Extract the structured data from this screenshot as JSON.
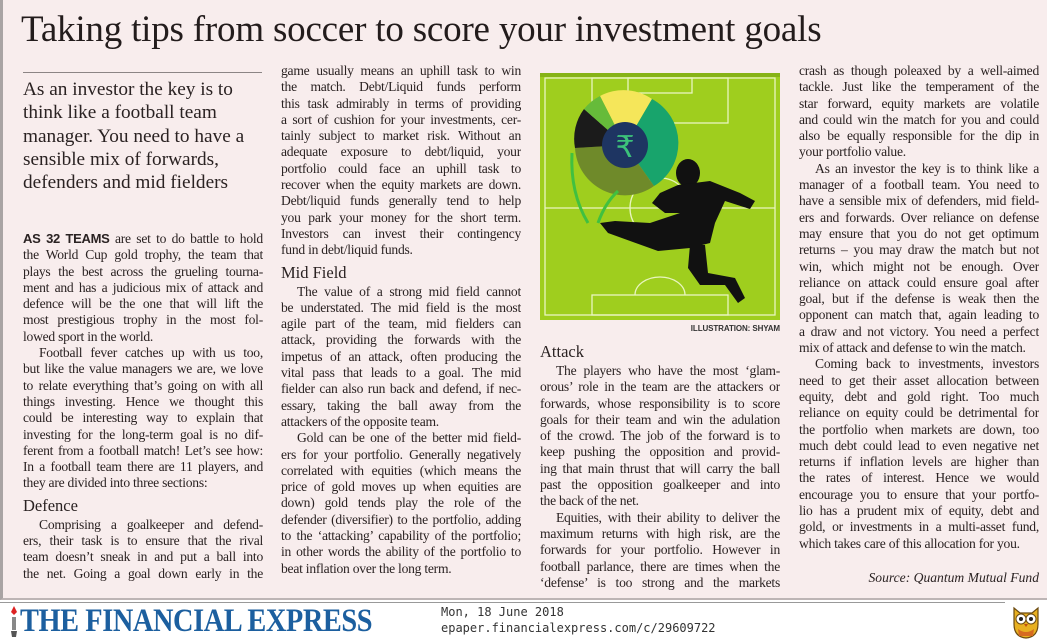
{
  "article": {
    "title": "Taking tips from soccer to score your investment goals",
    "deck": "As an investor the key is to think like a football team manager. You need to have a sensible mix of forwards, defenders and mid fielders",
    "illustration_credit": "ILLUSTRATION: SHYAM",
    "source": "Source: Quantum Mutual Fund",
    "columns": [
      {
        "blocks": [
          {
            "type": "p",
            "lead": "AS 32 TEAMS",
            "lines": [
              "are set to do battle to hold",
              "the World Cup gold trophy, the team that",
              "plays the best across the grueling tourna-",
              "ment and has a judicious mix of attack and",
              "defence will be the one that will lift the",
              "most prestigious trophy in the most fol-",
              "lowed sport in the world."
            ]
          },
          {
            "type": "p",
            "lines": [
              "Football fever catches up with us too,",
              "but like the value managers we are, we love",
              "to relate everything that’s going on with all",
              "things investing. Hence we thought this",
              "could be interesting way to explain that",
              "investing for the long-term goal is no dif-",
              "ferent from a football match! Let’s see how:",
              "In a football team there are 11 players, and",
              "they are divided into three sections:"
            ]
          },
          {
            "type": "h",
            "text": "Defence"
          },
          {
            "type": "p",
            "cont": true,
            "lines": [
              "Comprising a goalkeeper and defend-",
              "ers, their task is to ensure that the rival",
              "team doesn’t sneak in and put a ball into",
              "the net. Going a goal down early in the"
            ]
          }
        ]
      },
      {
        "blocks": [
          {
            "type": "p",
            "noindent": true,
            "lines": [
              "game usually means an uphill task to win",
              "the match. Debt/Liquid funds perform",
              "this task admirably in terms of providing",
              "a sort of cushion for your investments, cer-",
              "tainly subject to market risk. Without an",
              "adequate exposure to debt/liquid, your",
              "portfolio could face an uphill task to",
              "recover when the equity markets are down.",
              "Debt/liquid funds generally tend to help",
              "you park your money for the short term.",
              "Investors can invest their contingency",
              "fund in debt/liquid funds."
            ]
          },
          {
            "type": "h",
            "text": "Mid Field"
          },
          {
            "type": "p",
            "lines": [
              "The value of a strong mid field cannot",
              "be understated. The mid field is the most",
              "agile part of the team, mid fielders can",
              "attack, providing the forwards with the",
              "impetus of an attack, often producing the",
              "vital pass that leads to a goal. The mid",
              "fielder can also run back and defend, if nec-",
              "essary, taking the ball away from the",
              "attackers of the opposite team."
            ]
          },
          {
            "type": "p",
            "lines": [
              "Gold can be one of the better mid field-",
              "ers for your portfolio. Generally negatively",
              "correlated with equities (which means the",
              "price of gold moves up when equities are",
              "down) gold tends play the role of the",
              "defender (diversifier) to the portfolio, adding",
              "to the ‘attacking’ capability of the portfolio;",
              "in other words the ability of the portfolio to",
              "beat inflation over the long term."
            ]
          }
        ]
      },
      {
        "blocks": [
          {
            "type": "h",
            "text": "Attack"
          },
          {
            "type": "p",
            "lines": [
              "The players who have the most ‘glam-",
              "orous’ role in the team are the attackers or",
              "forwards, whose responsibility is to score",
              "goals for their team and win the adulation",
              "of the crowd. The job of the forward is to",
              "keep pushing the opposition and provid-",
              "ing that main thrust that will carry the ball",
              "past the opposition goalkeeper and into",
              "the back of the net."
            ]
          },
          {
            "type": "p",
            "cont": true,
            "lines": [
              "Equities, with their ability to deliver the",
              "maximum returns with high risk, are the",
              "forwards for your portfolio. However in",
              "football parlance, there are times when the",
              "‘defense’ is too strong and the markets"
            ]
          }
        ]
      },
      {
        "blocks": [
          {
            "type": "p",
            "noindent": true,
            "lines": [
              "crash as though poleaxed by a well-aimed",
              "tackle. Just like the temperament of the",
              "star forward, equity markets are volatile",
              "and could win the match for you and could",
              "also be equally responsible for the dip in",
              "your portfolio value."
            ]
          },
          {
            "type": "p",
            "lines": [
              "As an investor the key is to think like a",
              "manager of a football team. You need to",
              "have a sensible mix of defenders, mid field-",
              "ers and forwards. Over reliance on defense",
              "may ensure that you do not get optimum",
              "returns – you may draw the match but not",
              "win, which might not be enough. Over",
              "reliance on attack could ensure goal after",
              "goal, but if the defense is weak then the",
              "opponent can match that, again leading to",
              "a draw and not victory. You need a perfect",
              "mix of attack and defense to win the match."
            ]
          },
          {
            "type": "p",
            "lines": [
              "Coming back to investments, investors",
              "need to get their asset allocation between",
              "equity, debt and gold right. Too much",
              "reliance on equity could be detrimental for",
              "the portfolio when markets are down, too",
              "much debt could lead to even negative net",
              "returns if inflation levels are higher than",
              "the rates of interest. Hence we would",
              "encourage you to ensure that your portfo-",
              "lio has a prudent mix of equity, debt and",
              "gold, or investments in a multi-asset fund,",
              "which takes care of this allocation for you."
            ]
          }
        ]
      }
    ]
  },
  "footer": {
    "logo": "THE FINANCIAL EXPRESS",
    "date": "Mon, 18 June 2018",
    "url": "epaper.financialexpress.com/c/29609722",
    "logo_color": "#1c5f9f",
    "icon": "owl-icon"
  },
  "colors": {
    "page_bg": "#f8eded",
    "field_green": "#9ccc1c"
  }
}
